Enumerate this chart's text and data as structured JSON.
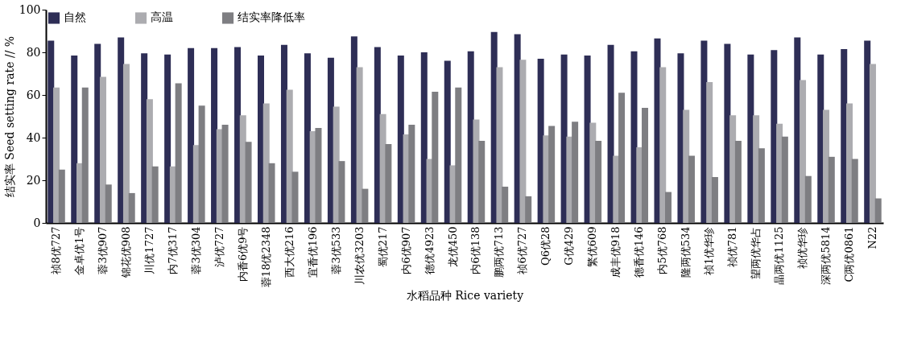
{
  "chart_data": {
    "type": "bar",
    "xlabel": "水稻品种 Rice variety",
    "ylabel": "结实率 Seed setting rate // %",
    "categories": [
      "祯8优727",
      "金卓优1号",
      "蓉3优907",
      "锦花优908",
      "川优1727",
      "内7优317",
      "蓉3优304",
      "泸优727",
      "内香6优9号",
      "蓉18优2348",
      "西大优216",
      "宜香优196",
      "蓉3优533",
      "川农优3203",
      "蜀优217",
      "内6优907",
      "德优4923",
      "龙优450",
      "内6优138",
      "鹏两优713",
      "祯6优727",
      "Q6优28",
      "G优429",
      "繁优609",
      "成丰优918",
      "德香优146",
      "内5优768",
      "隆两优534",
      "祯1优华珍",
      "祯优781",
      "望两优华占",
      "晶两优1125",
      "祯优华珍",
      "深两优5814",
      "C两优0861",
      "N22"
    ],
    "series": [
      {
        "name": "自然",
        "color": "#2e2e56",
        "values": [
          85.5,
          78.5,
          84,
          87,
          79.5,
          79,
          82,
          82,
          82.5,
          78.5,
          83.5,
          79.5,
          77.5,
          87.5,
          82.5,
          78.5,
          80,
          76,
          80.5,
          89.5,
          88.5,
          77,
          79,
          78.5,
          83.5,
          80.5,
          86.5,
          79.5,
          85.5,
          84,
          79,
          81,
          87,
          79,
          81.5,
          85.5
        ]
      },
      {
        "name": "高温",
        "color": "#acacb0",
        "values": [
          63.5,
          28,
          68.5,
          74.5,
          58,
          26.5,
          36.5,
          44,
          50.5,
          56,
          62.5,
          43,
          54.5,
          73,
          51,
          41.5,
          30,
          27,
          48.5,
          73,
          76.5,
          41,
          40.5,
          47,
          31.5,
          35.5,
          73,
          53,
          66,
          50.5,
          50.5,
          46.5,
          67,
          53,
          56,
          74.5
        ]
      },
      {
        "name": "结实率降低率",
        "color": "#7e7e82",
        "values": [
          25,
          63.5,
          18,
          14,
          26.5,
          65.5,
          55,
          46,
          38,
          28,
          24,
          44.5,
          29,
          16,
          37,
          46,
          61.5,
          63.5,
          38.5,
          17,
          12.5,
          45.5,
          47.5,
          38.5,
          61,
          54,
          14.5,
          31.5,
          21.5,
          38.5,
          35,
          40.5,
          22,
          31,
          30,
          11.5
        ]
      }
    ],
    "ylim": [
      0,
      100
    ],
    "yticks": [
      0,
      20,
      40,
      60,
      80,
      100
    ],
    "grid": false,
    "legend": "top left"
  }
}
